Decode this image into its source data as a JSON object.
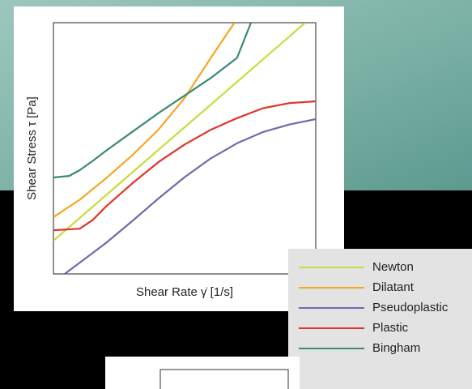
{
  "chart_data": {
    "type": "line",
    "xlabel": "Shear Rate γ̇ [1/s]",
    "ylabel": "Shear Stress τ [Pa]",
    "xlim": [
      0,
      10
    ],
    "ylim": [
      0,
      10
    ],
    "series": [
      {
        "name": "Newton",
        "color": "#c8dc3c",
        "x": [
          0,
          2,
          4,
          6,
          8,
          9.6
        ],
        "values": [
          1.32,
          3.13,
          4.94,
          6.74,
          8.55,
          10
        ]
      },
      {
        "name": "Dilatant",
        "color": "#f5a623",
        "x": [
          0,
          1,
          2,
          3,
          4,
          5,
          6,
          6.9
        ],
        "values": [
          2.26,
          2.95,
          3.8,
          4.72,
          5.74,
          7.0,
          8.6,
          10
        ]
      },
      {
        "name": "Pseudoplastic",
        "color": "#7467ad",
        "x": [
          0.43,
          2,
          3,
          4,
          5,
          6,
          7,
          8,
          9,
          10
        ],
        "values": [
          0,
          1.23,
          2.1,
          3.0,
          3.85,
          4.6,
          5.2,
          5.65,
          5.95,
          6.16
        ]
      },
      {
        "name": "Plastic",
        "color": "#e0342a",
        "x": [
          0,
          1,
          1.5,
          2,
          3,
          4,
          5,
          6,
          7,
          8,
          9,
          10
        ],
        "values": [
          1.74,
          1.8,
          2.15,
          2.68,
          3.6,
          4.45,
          5.15,
          5.74,
          6.2,
          6.6,
          6.8,
          6.87
        ]
      },
      {
        "name": "Bingham",
        "color": "#3a8a70",
        "x": [
          0,
          0.6,
          1,
          1.5,
          2,
          3,
          4,
          5,
          6,
          7,
          7.53
        ],
        "values": [
          3.84,
          3.9,
          4.13,
          4.5,
          4.9,
          5.65,
          6.4,
          7.1,
          7.8,
          8.6,
          10
        ]
      }
    ]
  }
}
